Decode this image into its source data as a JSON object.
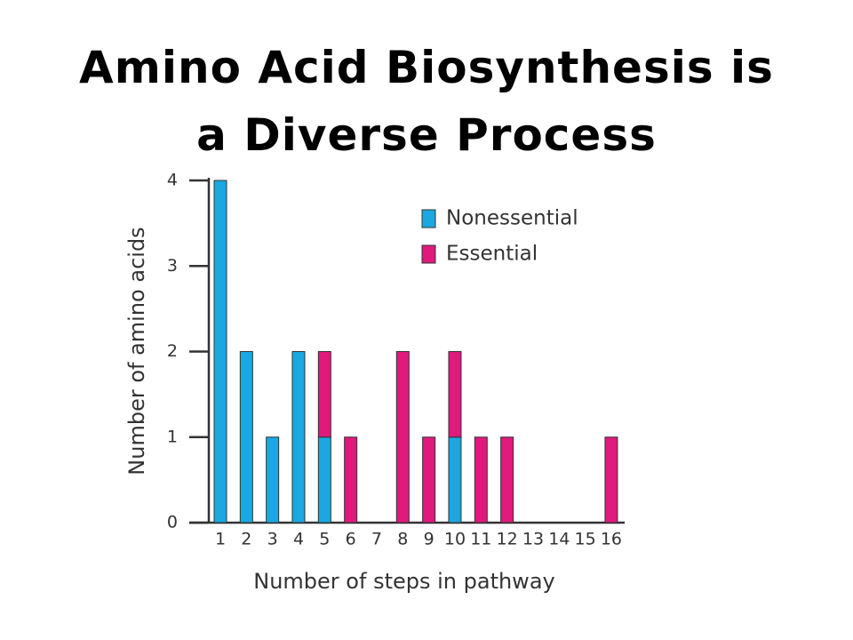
{
  "chart_data": {
    "type": "stacked-bar",
    "title": "Amino Acid Biosynthesis is a Diverse Process",
    "x_label": "Number of steps in pathway",
    "y_label": "Number of amino acids",
    "categories": [
      "1",
      "2",
      "3",
      "4",
      "5",
      "6",
      "7",
      "8",
      "9",
      "10",
      "11",
      "12",
      "13",
      "14",
      "15",
      "16"
    ],
    "series": [
      {
        "name": "Nonessential",
        "color": "#1ba8e0",
        "values": [
          4,
          2,
          1,
          2,
          1,
          0,
          0,
          0,
          0,
          1,
          0,
          0,
          0,
          0,
          0,
          0
        ]
      },
      {
        "name": "Essential",
        "color": "#e0197d",
        "values": [
          0,
          0,
          0,
          0,
          1,
          1,
          0,
          2,
          1,
          1,
          1,
          1,
          0,
          0,
          0,
          1
        ]
      }
    ],
    "ylim": [
      0,
      4
    ],
    "yticks": [
      0,
      1,
      2,
      3,
      4
    ],
    "legend": "upper-right",
    "grid": false
  }
}
